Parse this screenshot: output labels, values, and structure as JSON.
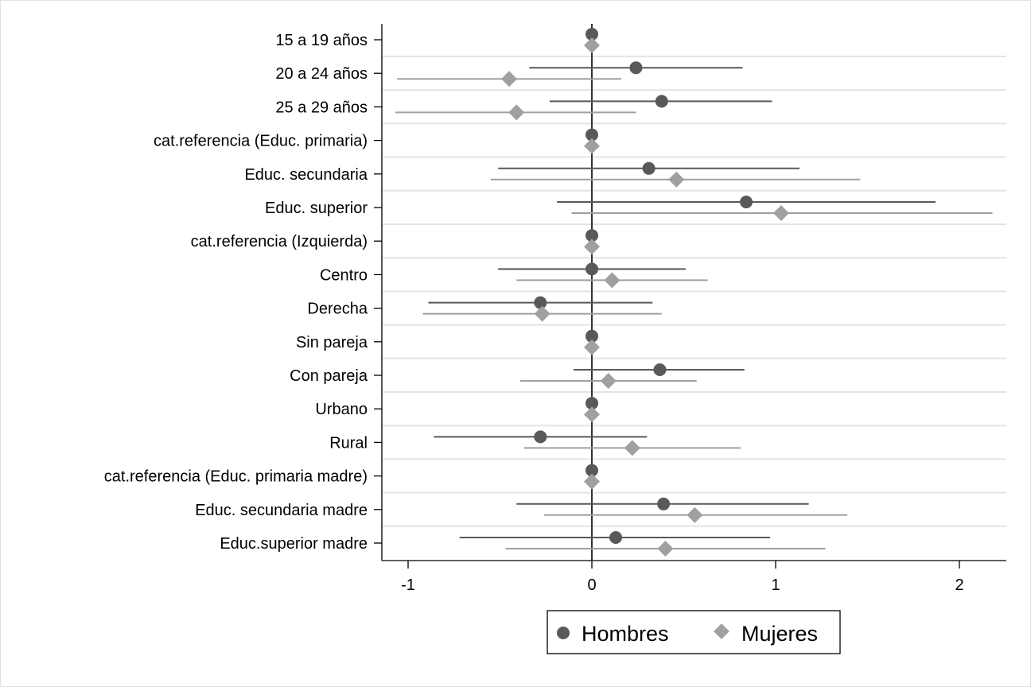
{
  "chart_data": {
    "type": "scatter",
    "title": "",
    "xlabel": "",
    "ylabel": "",
    "xlim": [
      -1.15,
      2.25
    ],
    "x_ticks": [
      -1,
      0,
      1,
      2
    ],
    "x_tick_labels": [
      "-1",
      "0",
      "1",
      "2"
    ],
    "grid": true,
    "legend_position": "bottom-center",
    "categories": [
      "15 a 19 años",
      "20 a 24 años",
      "25 a 29 años",
      "cat.referencia (Educ. primaria)",
      "Educ. secundaria",
      "Educ. superior",
      "cat.referencia (Izquierda)",
      "Centro",
      "Derecha",
      "Sin pareja",
      "Con pareja",
      "Urbano",
      "Rural",
      "cat.referencia (Educ. primaria madre)",
      "Educ. secundaria madre",
      "Educ.superior madre"
    ],
    "series": [
      {
        "name": "Hombres",
        "marker": "circle",
        "color": "#595959",
        "values": [
          0,
          0.24,
          0.38,
          0,
          0.31,
          0.84,
          0,
          0,
          -0.28,
          0,
          0.37,
          0,
          -0.28,
          0,
          0.39,
          0.13
        ],
        "ci_low": [
          null,
          -0.34,
          -0.23,
          null,
          -0.51,
          -0.19,
          null,
          -0.51,
          -0.89,
          null,
          -0.1,
          null,
          -0.86,
          null,
          -0.41,
          -0.72
        ],
        "ci_high": [
          null,
          0.82,
          0.98,
          null,
          1.13,
          1.87,
          null,
          0.51,
          0.33,
          null,
          0.83,
          null,
          0.3,
          null,
          1.18,
          0.97
        ]
      },
      {
        "name": "Mujeres",
        "marker": "diamond",
        "color": "#a0a0a0",
        "values": [
          0,
          -0.45,
          -0.41,
          0,
          0.46,
          1.03,
          0,
          0.11,
          -0.27,
          0,
          0.09,
          0,
          0.22,
          0,
          0.56,
          0.4
        ],
        "ci_low": [
          null,
          -1.06,
          -1.07,
          null,
          -0.55,
          -0.11,
          null,
          -0.41,
          -0.92,
          null,
          -0.39,
          null,
          -0.37,
          null,
          -0.26,
          -0.47
        ],
        "ci_high": [
          null,
          0.16,
          0.24,
          null,
          1.46,
          2.18,
          null,
          0.63,
          0.38,
          null,
          0.57,
          null,
          0.81,
          null,
          1.39,
          1.27
        ]
      }
    ]
  },
  "colors": {
    "hombres": "#595959",
    "mujeres": "#a0a0a0",
    "grid": "#e4e4e4",
    "axis": "#000000"
  }
}
